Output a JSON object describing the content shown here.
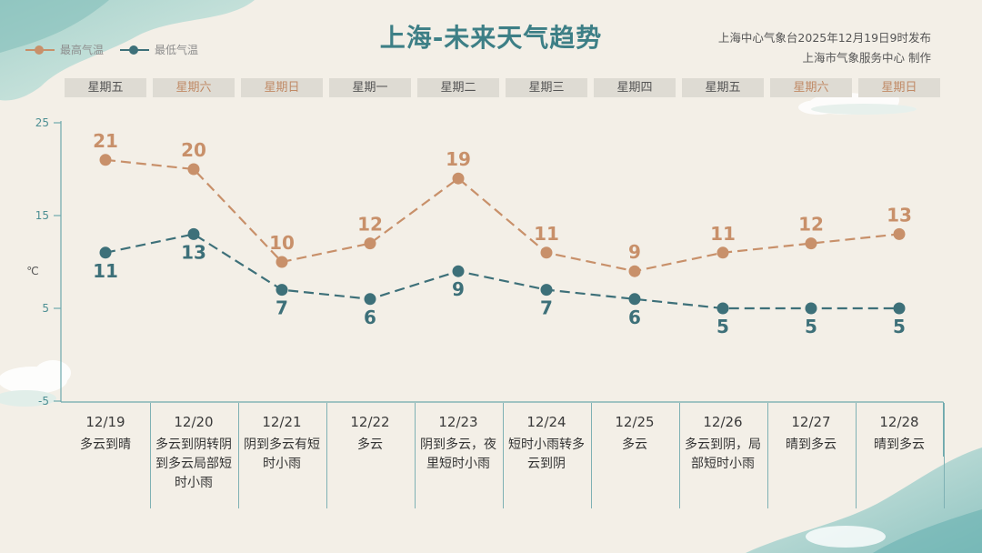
{
  "title": "上海-未来天气趋势",
  "publisher": {
    "line1": "上海中心气象台2025年12月19日9时发布",
    "line2": "上海市气象服务中心  制作"
  },
  "legend": {
    "high_label": "最高气温",
    "low_label": "最低气温"
  },
  "colors": {
    "high": "#c8906a",
    "low": "#3d7079",
    "axis": "#6ea9ad",
    "weekday_text": "#555555",
    "weekend_text": "#c08a66"
  },
  "weekdays": [
    {
      "label": "星期五",
      "weekend": false
    },
    {
      "label": "星期六",
      "weekend": true
    },
    {
      "label": "星期日",
      "weekend": true
    },
    {
      "label": "星期一",
      "weekend": false
    },
    {
      "label": "星期二",
      "weekend": false
    },
    {
      "label": "星期三",
      "weekend": false
    },
    {
      "label": "星期四",
      "weekend": false
    },
    {
      "label": "星期五",
      "weekend": false
    },
    {
      "label": "星期六",
      "weekend": true
    },
    {
      "label": "星期日",
      "weekend": true
    }
  ],
  "days": [
    {
      "date": "12/19",
      "weather": "多云到晴"
    },
    {
      "date": "12/20",
      "weather": "多云到阴转阴到多云局部短时小雨"
    },
    {
      "date": "12/21",
      "weather": "阴到多云有短时小雨"
    },
    {
      "date": "12/22",
      "weather": "多云"
    },
    {
      "date": "12/23",
      "weather": "阴到多云，夜里短时小雨"
    },
    {
      "date": "12/24",
      "weather": "短时小雨转多云到阴"
    },
    {
      "date": "12/25",
      "weather": "多云"
    },
    {
      "date": "12/26",
      "weather": "多云到阴，局部短时小雨"
    },
    {
      "date": "12/27",
      "weather": "晴到多云"
    },
    {
      "date": "12/28",
      "weather": "晴到多云"
    }
  ],
  "chart_data": {
    "type": "line",
    "title": "上海-未来天气趋势",
    "xlabel": "",
    "ylabel": "℃",
    "x": [
      "12/19",
      "12/20",
      "12/21",
      "12/22",
      "12/23",
      "12/24",
      "12/25",
      "12/26",
      "12/27",
      "12/28"
    ],
    "ylim": [
      -5,
      25
    ],
    "yticks": [
      25,
      15,
      5,
      -5
    ],
    "grid": false,
    "legend_position": "top-left",
    "line_style": "dashed",
    "series": [
      {
        "name": "最高气温",
        "color": "#c8906a",
        "values": [
          21,
          20,
          10,
          12,
          19,
          11,
          9,
          11,
          12,
          13
        ]
      },
      {
        "name": "最低气温",
        "color": "#3d7079",
        "values": [
          11,
          13,
          7,
          6,
          9,
          7,
          6,
          5,
          5,
          5
        ]
      }
    ]
  }
}
